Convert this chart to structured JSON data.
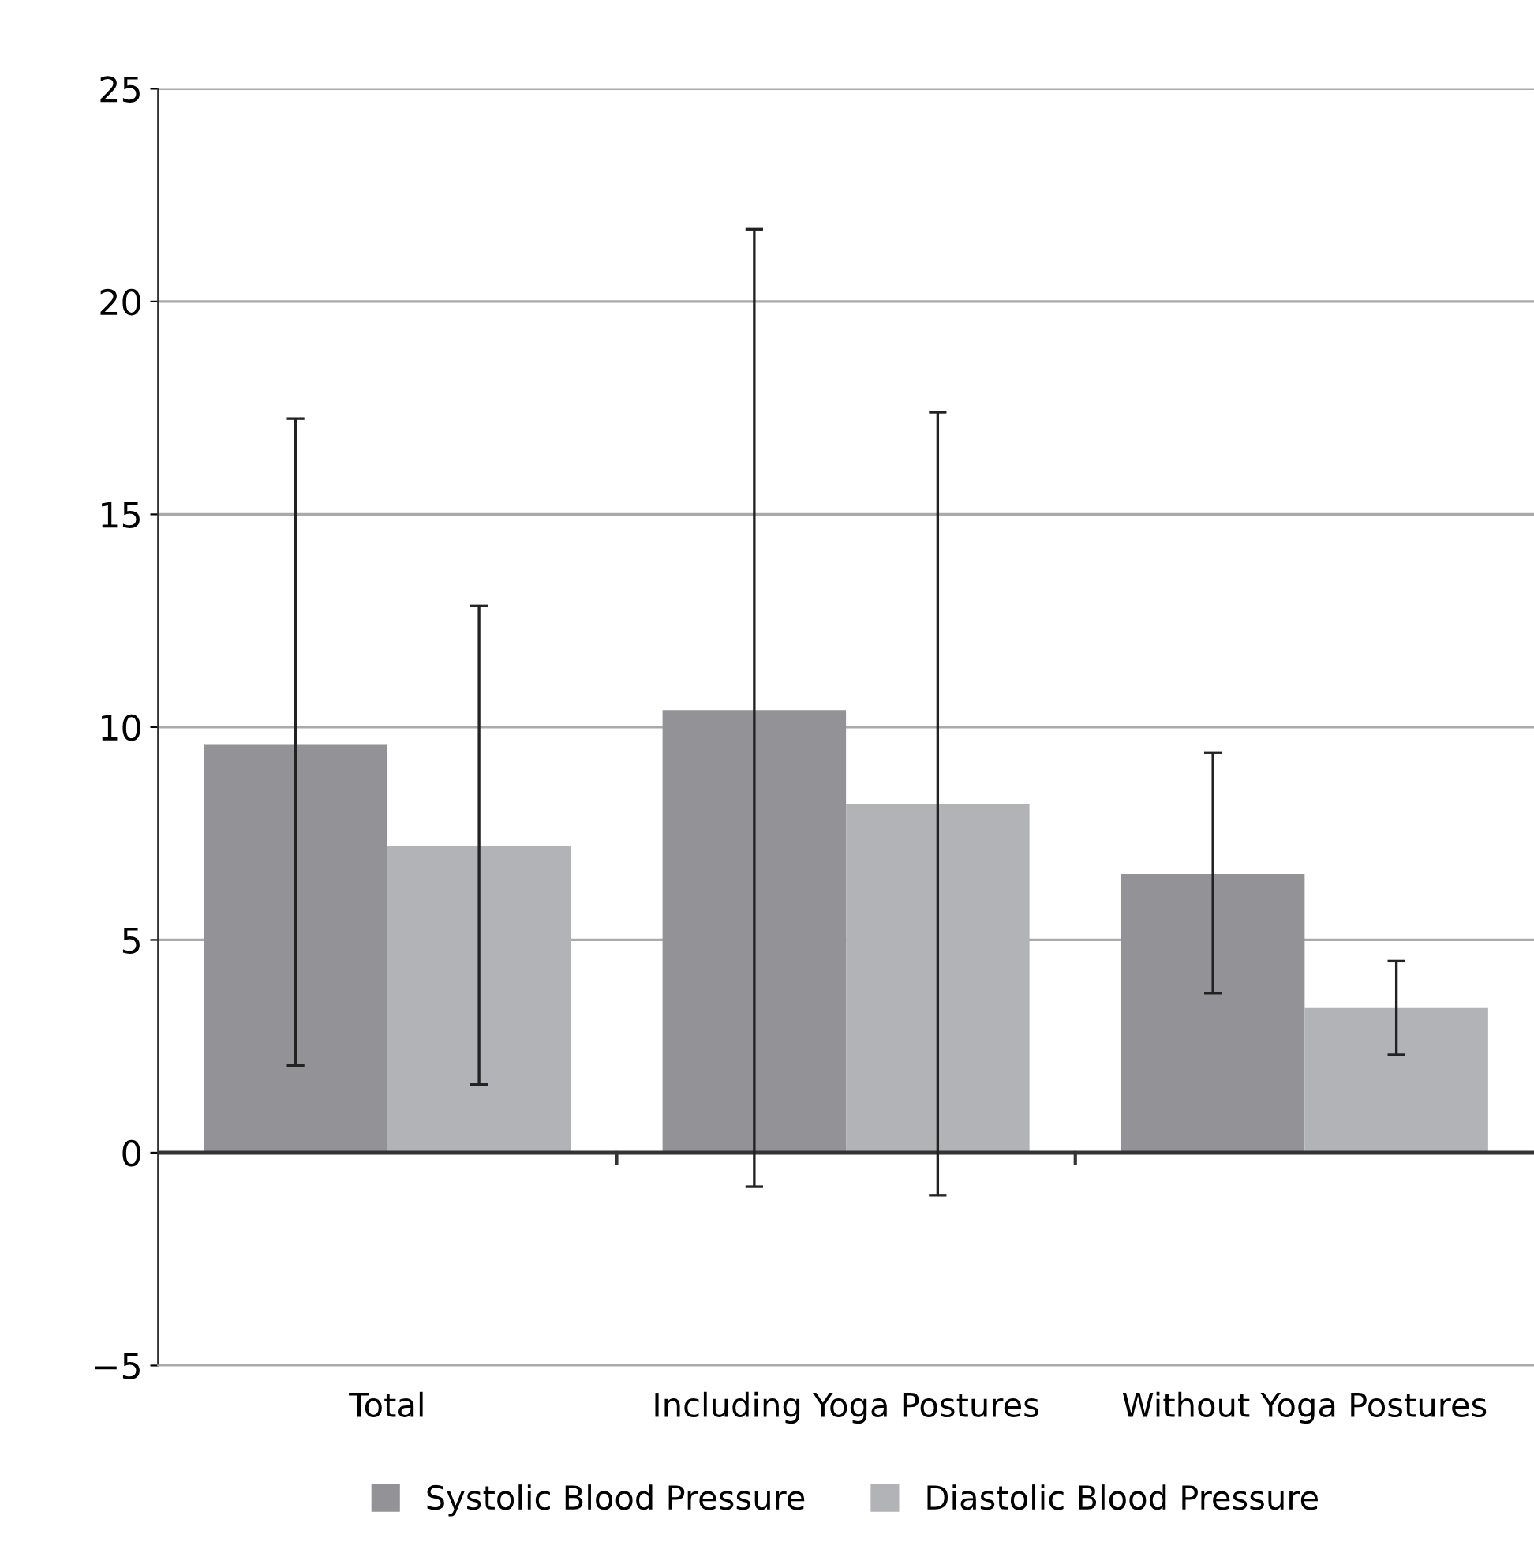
{
  "chart_data": {
    "type": "bar",
    "categories": [
      "Total",
      "Including Yoga Postures",
      "Without Yoga Postures"
    ],
    "series": [
      {
        "name": "Systolic Blood Pressure",
        "color": "#929297",
        "values": [
          9.6,
          10.4,
          6.55
        ],
        "errors": [
          [
            2.05,
            17.25
          ],
          [
            -0.8,
            21.7
          ],
          [
            3.75,
            9.4
          ]
        ]
      },
      {
        "name": "Diastolic Blood Pressure",
        "color": "#b2b3b7",
        "values": [
          7.2,
          8.2,
          3.4
        ],
        "errors": [
          [
            1.6,
            12.85
          ],
          [
            -1.0,
            17.4
          ],
          [
            2.3,
            4.5
          ]
        ]
      }
    ],
    "ylim": [
      -5,
      25
    ],
    "yticks": [
      {
        "value": -5,
        "label": "−5"
      },
      0,
      5,
      10,
      15,
      20,
      25
    ],
    "grid": "y",
    "legend": "bottom"
  }
}
